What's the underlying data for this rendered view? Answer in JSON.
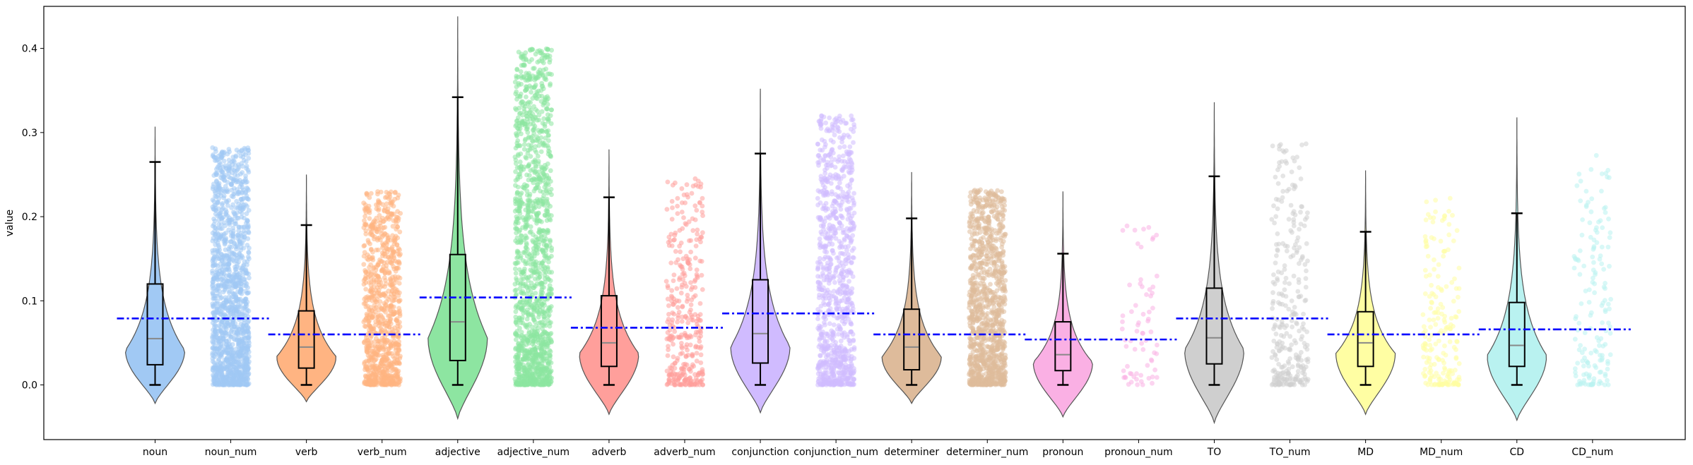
{
  "chart_data": {
    "type": "violin",
    "ylabel": "value",
    "ylim": [
      -0.065,
      0.45
    ],
    "yticks": [
      "0.0",
      "0.1",
      "0.2",
      "0.3",
      "0.4"
    ],
    "grid": false,
    "legend": "none",
    "mean_line_color": "#0000ff",
    "categories": [
      "noun",
      "noun_num",
      "verb",
      "verb_num",
      "adjective",
      "adjective_num",
      "adverb",
      "adverb_num",
      "conjunction",
      "conjunction_num",
      "determiner",
      "determiner_num",
      "pronoun",
      "pronoun_num",
      "TO",
      "TO_num",
      "MD",
      "MD_num",
      "CD",
      "CD_num"
    ],
    "groups": [
      {
        "name": "noun",
        "color": "#a1c9f4",
        "q1": 0.024,
        "median": 0.055,
        "q3": 0.12,
        "whisker_low": 0.0,
        "whisker_high": 0.265,
        "violin_min": -0.022,
        "violin_max": 0.307,
        "mean": 0.079,
        "points": 0
      },
      {
        "name": "noun_num",
        "color": "#a1c9f4",
        "mean": 0.079,
        "point_min": 0.0,
        "point_max": 0.282,
        "points": 1400
      },
      {
        "name": "verb",
        "color": "#ffb482",
        "q1": 0.02,
        "median": 0.045,
        "q3": 0.088,
        "whisker_low": 0.0,
        "whisker_high": 0.19,
        "violin_min": -0.02,
        "violin_max": 0.25,
        "mean": 0.06,
        "points": 0
      },
      {
        "name": "verb_num",
        "color": "#ffb482",
        "mean": 0.06,
        "point_min": 0.0,
        "point_max": 0.23,
        "points": 900
      },
      {
        "name": "adjective",
        "color": "#8de5a1",
        "q1": 0.029,
        "median": 0.075,
        "q3": 0.155,
        "whisker_low": 0.0,
        "whisker_high": 0.342,
        "violin_min": -0.04,
        "violin_max": 0.438,
        "mean": 0.104,
        "points": 0
      },
      {
        "name": "adjective_num",
        "color": "#8de5a1",
        "mean": 0.104,
        "point_min": 0.0,
        "point_max": 0.4,
        "points": 1400
      },
      {
        "name": "adverb",
        "color": "#ff9f9b",
        "q1": 0.022,
        "median": 0.05,
        "q3": 0.106,
        "whisker_low": 0.0,
        "whisker_high": 0.223,
        "violin_min": -0.035,
        "violin_max": 0.28,
        "mean": 0.068,
        "points": 0
      },
      {
        "name": "adverb_num",
        "color": "#ff9f9b",
        "mean": 0.068,
        "point_min": 0.0,
        "point_max": 0.246,
        "points": 350
      },
      {
        "name": "conjunction",
        "color": "#d0bbff",
        "q1": 0.026,
        "median": 0.061,
        "q3": 0.125,
        "whisker_low": 0.0,
        "whisker_high": 0.275,
        "violin_min": -0.033,
        "violin_max": 0.352,
        "mean": 0.085,
        "points": 0
      },
      {
        "name": "conjunction_num",
        "color": "#d0bbff",
        "mean": 0.085,
        "point_min": 0.0,
        "point_max": 0.32,
        "points": 900
      },
      {
        "name": "determiner",
        "color": "#debb9b",
        "q1": 0.018,
        "median": 0.045,
        "q3": 0.09,
        "whisker_low": 0.0,
        "whisker_high": 0.198,
        "violin_min": -0.022,
        "violin_max": 0.253,
        "mean": 0.06,
        "points": 0
      },
      {
        "name": "determiner_num",
        "color": "#debb9b",
        "mean": 0.06,
        "point_min": 0.0,
        "point_max": 0.232,
        "points": 1100
      },
      {
        "name": "pronoun",
        "color": "#fab0e4",
        "q1": 0.017,
        "median": 0.036,
        "q3": 0.075,
        "whisker_low": 0.0,
        "whisker_high": 0.156,
        "violin_min": -0.038,
        "violin_max": 0.23,
        "mean": 0.054,
        "points": 0
      },
      {
        "name": "pronoun_num",
        "color": "#fab0e4",
        "mean": 0.054,
        "point_min": 0.0,
        "point_max": 0.19,
        "points": 70
      },
      {
        "name": "TO",
        "color": "#cfcfcf",
        "q1": 0.025,
        "median": 0.056,
        "q3": 0.115,
        "whisker_low": 0.0,
        "whisker_high": 0.248,
        "violin_min": -0.045,
        "violin_max": 0.336,
        "mean": 0.079,
        "points": 0
      },
      {
        "name": "TO_num",
        "color": "#cfcfcf",
        "mean": 0.079,
        "point_min": 0.0,
        "point_max": 0.292,
        "points": 300
      },
      {
        "name": "MD",
        "color": "#fffea3",
        "q1": 0.022,
        "median": 0.05,
        "q3": 0.087,
        "whisker_low": 0.0,
        "whisker_high": 0.182,
        "violin_min": -0.035,
        "violin_max": 0.255,
        "mean": 0.06,
        "points": 0
      },
      {
        "name": "MD_num",
        "color": "#fffea3",
        "mean": 0.06,
        "point_min": 0.0,
        "point_max": 0.222,
        "points": 200
      },
      {
        "name": "CD",
        "color": "#b9f2f0",
        "q1": 0.022,
        "median": 0.047,
        "q3": 0.098,
        "whisker_low": 0.0,
        "whisker_high": 0.204,
        "violin_min": -0.042,
        "violin_max": 0.318,
        "mean": 0.066,
        "points": 0
      },
      {
        "name": "CD_num",
        "color": "#b9f2f0",
        "mean": 0.066,
        "point_min": 0.0,
        "point_max": 0.276,
        "points": 160
      }
    ]
  }
}
